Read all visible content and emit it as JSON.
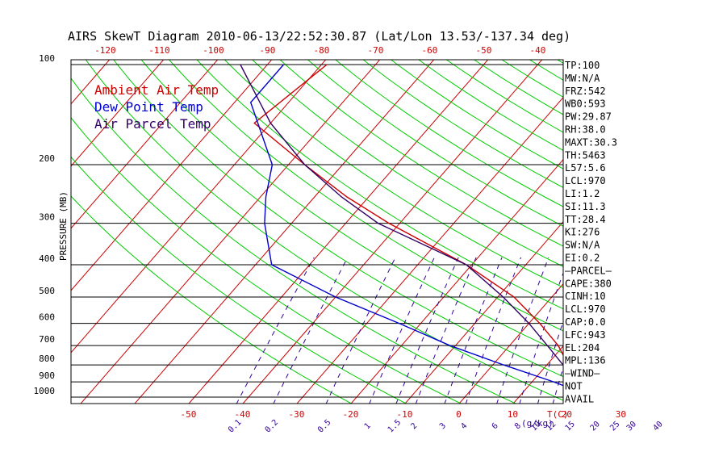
{
  "chart_data": {
    "type": "skew-t",
    "title": "AIRS SkewT Diagram 2010-06-13/22:52:30.87 (Lat/Lon 13.53/-137.34 deg)",
    "ylabel": "PRESSURE (MB)",
    "pressure_ticks": [
      100,
      200,
      300,
      400,
      500,
      600,
      700,
      800,
      900,
      1000
    ],
    "top_temp_ticks": [
      -120,
      -110,
      -100,
      -90,
      -80,
      -70,
      -60,
      -50,
      -40
    ],
    "bottom_temp_ticks": [
      -50,
      -40,
      -30,
      -20,
      -10,
      0,
      10,
      20,
      30
    ],
    "bottom_temp_unit": "T(C)",
    "mixing_ratio_ticks": [
      "0.1",
      "0.2",
      "0.5",
      "1",
      "1.5",
      "2",
      "3",
      "4",
      "6",
      "8",
      "10",
      "12",
      "15",
      "20",
      "25",
      "30",
      "40"
    ],
    "mixing_ratio_unit": "(g/kg)",
    "legend": [
      "Ambient Air Temp",
      "Dew Point Temp",
      "Air Parcel Temp"
    ],
    "colors": {
      "ambient": "#cc0000",
      "dewpoint": "#0000cc",
      "parcel": "#330066",
      "isotherm": "#cc0000",
      "dry_adiabat": "#00cc00",
      "mixing_ratio": "#330099",
      "frame": "#000000"
    },
    "series": [
      {
        "name": "Ambient Air Temp",
        "points": [
          {
            "p": 100,
            "t": -79
          },
          {
            "p": 150,
            "t": -83
          },
          {
            "p": 200,
            "t": -67
          },
          {
            "p": 250,
            "t": -54
          },
          {
            "p": 300,
            "t": -42
          },
          {
            "p": 400,
            "t": -21
          },
          {
            "p": 500,
            "t": -7
          },
          {
            "p": 600,
            "t": 2
          },
          {
            "p": 700,
            "t": 9
          },
          {
            "p": 800,
            "t": 14
          },
          {
            "p": 900,
            "t": 19
          },
          {
            "p": 950,
            "t": 21
          },
          {
            "p": 1010,
            "t": 27
          }
        ]
      },
      {
        "name": "Dew Point Temp",
        "points": [
          {
            "p": 100,
            "t": -87
          },
          {
            "p": 130,
            "t": -87
          },
          {
            "p": 200,
            "t": -73
          },
          {
            "p": 250,
            "t": -69
          },
          {
            "p": 300,
            "t": -65
          },
          {
            "p": 400,
            "t": -57
          },
          {
            "p": 500,
            "t": -40
          },
          {
            "p": 600,
            "t": -24
          },
          {
            "p": 700,
            "t": -11
          },
          {
            "p": 800,
            "t": 2
          },
          {
            "p": 900,
            "t": 14
          },
          {
            "p": 950,
            "t": 19
          },
          {
            "p": 1010,
            "t": 22
          }
        ]
      },
      {
        "name": "Air Parcel Temp",
        "points": [
          {
            "p": 100,
            "t": -95
          },
          {
            "p": 150,
            "t": -80
          },
          {
            "p": 200,
            "t": -67
          },
          {
            "p": 250,
            "t": -55
          },
          {
            "p": 300,
            "t": -44
          },
          {
            "p": 400,
            "t": -21
          },
          {
            "p": 500,
            "t": -9
          },
          {
            "p": 600,
            "t": 0
          },
          {
            "p": 700,
            "t": 7
          },
          {
            "p": 800,
            "t": 13
          },
          {
            "p": 900,
            "t": 18
          },
          {
            "p": 950,
            "t": 21
          },
          {
            "p": 1010,
            "t": 26
          }
        ]
      }
    ],
    "indices": [
      "TP:100",
      "MW:N/A",
      "FRZ:542",
      "WB0:593",
      "PW:29.87",
      "RH:38.0",
      "MAXT:30.3",
      "TH:5463",
      "L57:5.6",
      "LCL:970",
      "LI:1.2",
      "SI:11.3",
      "TT:28.4",
      "KI:276",
      "SW:N/A",
      "EI:0.2",
      "—PARCEL—",
      "CAPE:380",
      "CINH:10",
      "LCL:970",
      "CAP:0.0",
      "LFC:943",
      "EL:204",
      "MPL:136",
      "—WIND—",
      "NOT",
      "AVAIL"
    ]
  }
}
